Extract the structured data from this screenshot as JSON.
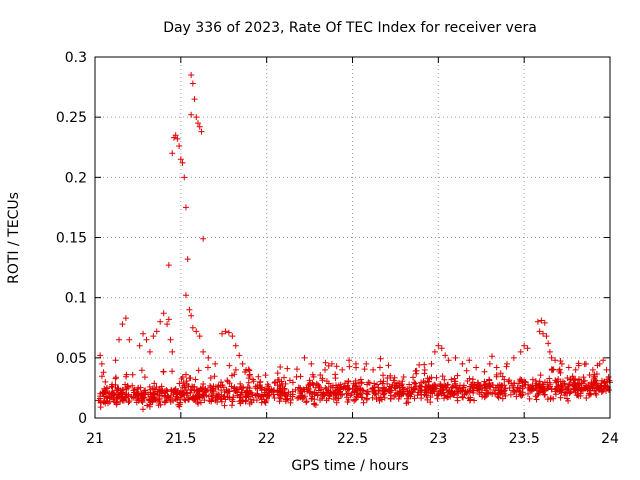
{
  "chart_data": {
    "type": "scatter",
    "title": "Day 336 of 2023, Rate Of TEC Index for receiver vera",
    "xlabel": "GPS time / hours",
    "ylabel": "ROTI / TECUs",
    "xlim": [
      21,
      24
    ],
    "ylim": [
      0,
      0.3
    ],
    "xticks": [
      21,
      21.5,
      22,
      22.5,
      23,
      23.5,
      24
    ],
    "xtick_labels": [
      "21",
      "21.5",
      "22",
      "22.5",
      "23",
      "23.5",
      "24"
    ],
    "yticks": [
      0,
      0.05,
      0.1,
      0.15,
      0.2,
      0.25,
      0.3
    ],
    "ytick_labels": [
      "0",
      "0.05",
      "0.1",
      "0.15",
      "0.2",
      "0.25",
      "0.3"
    ],
    "grid": true,
    "marker": "+",
    "color": "#e00000",
    "series": [
      {
        "name": "ROTI",
        "points": [
          [
            21.03,
            0.052
          ],
          [
            21.04,
            0.045
          ],
          [
            21.05,
            0.038
          ],
          [
            21.06,
            0.03
          ],
          [
            21.07,
            0.025
          ],
          [
            21.08,
            0.02
          ],
          [
            21.12,
            0.048
          ],
          [
            21.14,
            0.065
          ],
          [
            21.16,
            0.078
          ],
          [
            21.18,
            0.083
          ],
          [
            21.2,
            0.065
          ],
          [
            21.26,
            0.06
          ],
          [
            21.28,
            0.07
          ],
          [
            21.3,
            0.065
          ],
          [
            21.32,
            0.055
          ],
          [
            21.34,
            0.068
          ],
          [
            21.36,
            0.072
          ],
          [
            21.38,
            0.08
          ],
          [
            21.4,
            0.087
          ],
          [
            21.42,
            0.078
          ],
          [
            21.43,
            0.082
          ],
          [
            21.44,
            0.065
          ],
          [
            21.45,
            0.055
          ],
          [
            21.43,
            0.127
          ],
          [
            21.45,
            0.22
          ],
          [
            21.46,
            0.233
          ],
          [
            21.47,
            0.235
          ],
          [
            21.48,
            0.232
          ],
          [
            21.49,
            0.226
          ],
          [
            21.5,
            0.215
          ],
          [
            21.51,
            0.212
          ],
          [
            21.52,
            0.2
          ],
          [
            21.53,
            0.175
          ],
          [
            21.53,
            0.102
          ],
          [
            21.54,
            0.132
          ],
          [
            21.55,
            0.09
          ],
          [
            21.56,
            0.085
          ],
          [
            21.56,
            0.252
          ],
          [
            21.56,
            0.285
          ],
          [
            21.57,
            0.278
          ],
          [
            21.58,
            0.265
          ],
          [
            21.59,
            0.25
          ],
          [
            21.6,
            0.245
          ],
          [
            21.61,
            0.242
          ],
          [
            21.62,
            0.238
          ],
          [
            21.63,
            0.149
          ],
          [
            21.57,
            0.075
          ],
          [
            21.59,
            0.072
          ],
          [
            21.61,
            0.068
          ],
          [
            21.63,
            0.055
          ],
          [
            21.66,
            0.05
          ],
          [
            21.7,
            0.045
          ],
          [
            21.74,
            0.07
          ],
          [
            21.76,
            0.072
          ],
          [
            21.78,
            0.071
          ],
          [
            21.8,
            0.068
          ],
          [
            21.82,
            0.06
          ],
          [
            21.84,
            0.052
          ],
          [
            21.86,
            0.045
          ],
          [
            21.88,
            0.04
          ],
          [
            21.9,
            0.035
          ],
          [
            21.92,
            0.032
          ],
          [
            22.22,
            0.05
          ],
          [
            22.26,
            0.045
          ],
          [
            22.34,
            0.04
          ],
          [
            22.38,
            0.045
          ],
          [
            22.44,
            0.04
          ],
          [
            22.48,
            0.048
          ],
          [
            22.52,
            0.045
          ],
          [
            22.58,
            0.045
          ],
          [
            22.62,
            0.04
          ],
          [
            22.66,
            0.042
          ],
          [
            22.72,
            0.035
          ],
          [
            22.96,
            0.045
          ],
          [
            22.98,
            0.055
          ],
          [
            23.0,
            0.06
          ],
          [
            23.02,
            0.058
          ],
          [
            23.04,
            0.052
          ],
          [
            23.06,
            0.048
          ],
          [
            23.1,
            0.05
          ],
          [
            23.14,
            0.045
          ],
          [
            23.18,
            0.048
          ],
          [
            23.22,
            0.042
          ],
          [
            23.3,
            0.045
          ],
          [
            23.34,
            0.042
          ],
          [
            23.4,
            0.045
          ],
          [
            23.44,
            0.05
          ],
          [
            23.48,
            0.055
          ],
          [
            23.5,
            0.06
          ],
          [
            23.52,
            0.058
          ],
          [
            23.58,
            0.08
          ],
          [
            23.6,
            0.081
          ],
          [
            23.62,
            0.079
          ],
          [
            23.59,
            0.072
          ],
          [
            23.61,
            0.07
          ],
          [
            23.63,
            0.068
          ],
          [
            23.64,
            0.062
          ],
          [
            23.65,
            0.055
          ],
          [
            23.66,
            0.05
          ],
          [
            23.68,
            0.048
          ],
          [
            23.72,
            0.045
          ],
          [
            23.76,
            0.042
          ],
          [
            23.8,
            0.04
          ],
          [
            23.86,
            0.045
          ],
          [
            23.9,
            0.04
          ],
          [
            23.94,
            0.045
          ],
          [
            23.96,
            0.048
          ],
          [
            23.98,
            0.04
          ]
        ]
      }
    ],
    "background_band": {
      "description": "dense cloud of low ROTI values across the full time range",
      "x_range": [
        21.02,
        24.0
      ],
      "y_center_start": 0.018,
      "y_center_end": 0.026,
      "y_spread": 0.012,
      "point_count": 1400
    }
  }
}
